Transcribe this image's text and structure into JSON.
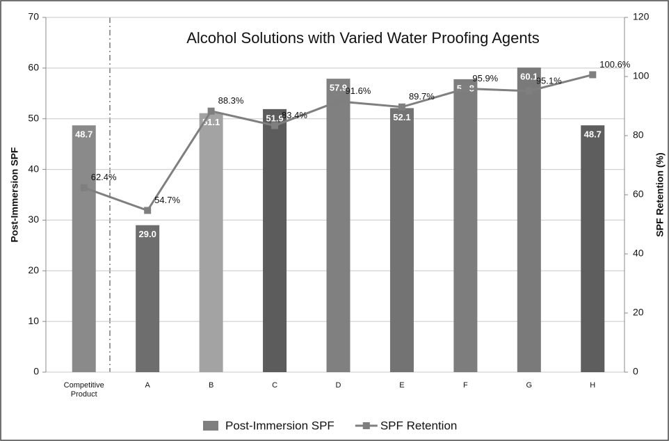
{
  "chart_data": {
    "type": "bar-line",
    "title": "Alcohol Solutions with Varied Water Proofing Agents",
    "y_label": "Post-Immersion SPF",
    "y2_label": "SPF Retention (%)",
    "categories": [
      "Competitive Product",
      "A",
      "B",
      "C",
      "D",
      "E",
      "F",
      "G",
      "H"
    ],
    "series": [
      {
        "name": "Post-Immersion SPF",
        "type": "bar",
        "color": "#7f7f7f",
        "colors": [
          "#8a8a8a",
          "#6e6e6e",
          "#a3a3a3",
          "#5c5c5c",
          "#808080",
          "#737373",
          "#7d7d7d",
          "#7a7a7a",
          "#5e5e5e"
        ],
        "values": [
          48.7,
          29.0,
          51.1,
          51.9,
          57.9,
          52.1,
          57.8,
          60.1,
          48.7
        ],
        "value_labels": [
          "48.7",
          "29.0",
          "51.1",
          "51.9",
          "57.9",
          "52.1",
          "57.8",
          "60.1",
          "48.7"
        ]
      },
      {
        "name": "SPF Retention",
        "type": "line",
        "axis": "y2",
        "color": "#7f7f7f",
        "values": [
          62.4,
          54.7,
          88.3,
          83.4,
          91.6,
          89.7,
          95.9,
          95.1,
          100.6
        ],
        "value_labels": [
          "62.4%",
          "54.7%",
          "88.3%",
          "83.4%",
          "91.6%",
          "89.7%",
          "95.9%",
          "95.1%",
          "100.6%"
        ]
      }
    ],
    "ylim": [
      0,
      70
    ],
    "yticks": [
      0,
      10,
      20,
      30,
      40,
      50,
      60,
      70
    ],
    "y2lim": [
      0,
      120
    ],
    "y2ticks": [
      0,
      20,
      40,
      60,
      80,
      100,
      120
    ],
    "grid": true
  }
}
